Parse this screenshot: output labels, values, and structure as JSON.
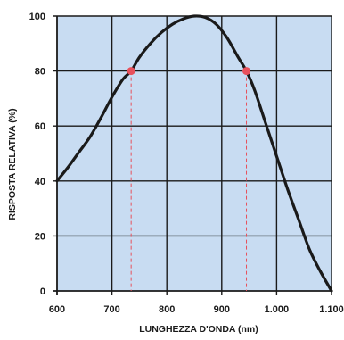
{
  "chart_data": {
    "type": "line",
    "title": "",
    "xlabel": "LUNGHEZZA D'ONDA (nm)",
    "ylabel": "RISPOSTA RELATIVA (%)",
    "xlim": [
      600,
      1100
    ],
    "ylim": [
      0,
      100
    ],
    "x_ticks": [
      600,
      700,
      800,
      900,
      1000,
      1100
    ],
    "x_tick_labels": [
      "600",
      "700",
      "800",
      "900",
      "1.000",
      "1.100"
    ],
    "y_ticks": [
      0,
      20,
      40,
      60,
      80,
      100
    ],
    "y_tick_labels": [
      "0",
      "20",
      "40",
      "60",
      "80",
      "100"
    ],
    "grid": true,
    "colors": {
      "plot_background": "#c8dcf2",
      "grid": "#1a1a1a",
      "curve": "#1a1a1a",
      "marker": "#e8505b",
      "marker_guide": "#e8505b"
    },
    "series": [
      {
        "x": [
          600,
          620,
          640,
          660,
          680,
          700,
          720,
          735,
          750,
          770,
          790,
          810,
          830,
          850,
          870,
          890,
          910,
          930,
          945,
          960,
          980,
          1000,
          1020,
          1040,
          1060,
          1080,
          1100
        ],
        "y": [
          40,
          45,
          50.5,
          56,
          63,
          70.5,
          77,
          80,
          85,
          90,
          94,
          97,
          99,
          100,
          99.5,
          97,
          92,
          85,
          80,
          73,
          61,
          49,
          37,
          26,
          15,
          7,
          0
        ]
      }
    ],
    "markers": [
      {
        "x": 735,
        "y": 80
      },
      {
        "x": 945,
        "y": 80
      }
    ]
  }
}
